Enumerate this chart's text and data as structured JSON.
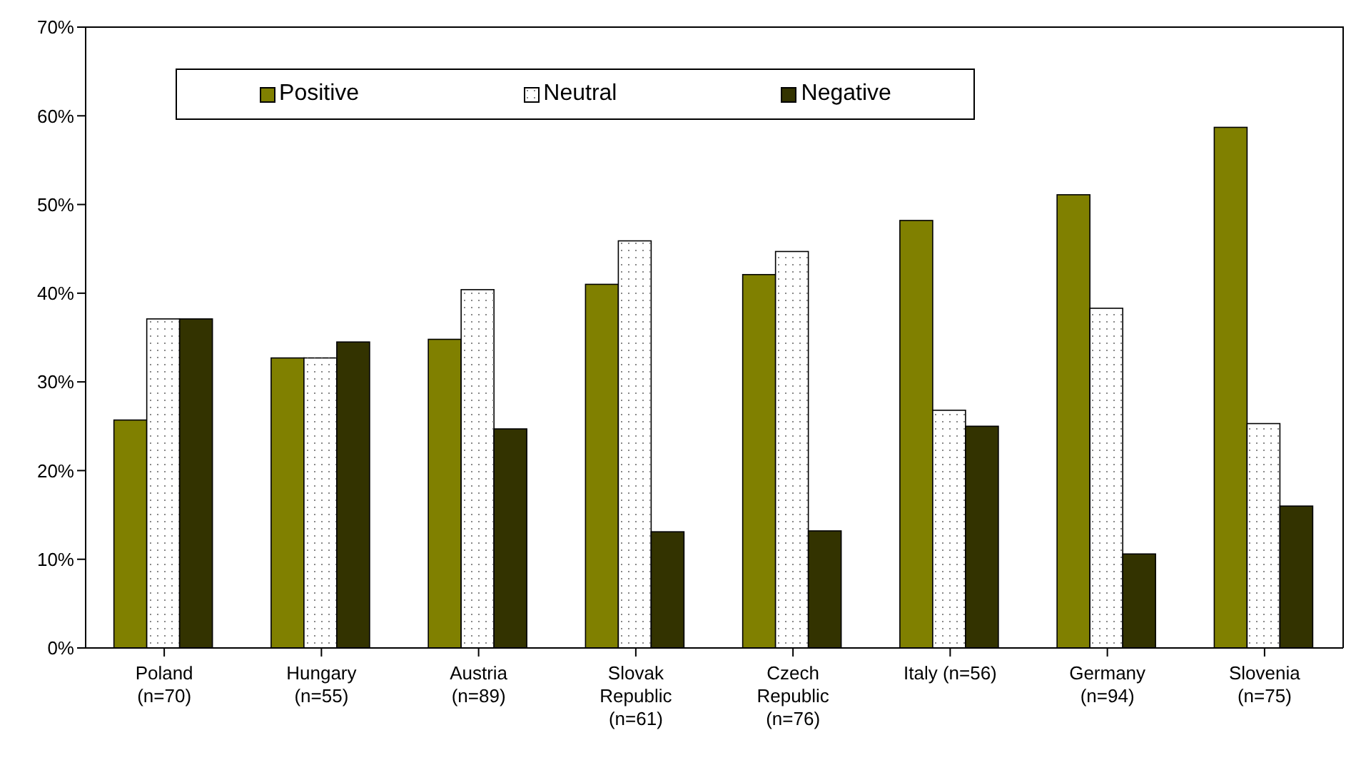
{
  "chart_data": {
    "type": "bar",
    "categories": [
      "Poland\n(n=70)",
      "Hungary\n(n=55)",
      "Austria\n(n=89)",
      "Slovak\nRepublic\n(n=61)",
      "Czech\nRepublic\n(n=76)",
      "Italy (n=56)",
      "Germany\n(n=94)",
      "Slovenia\n(n=75)"
    ],
    "series": [
      {
        "name": "Positive",
        "color": "#808000",
        "values": [
          25.7,
          32.7,
          34.8,
          41.0,
          42.1,
          48.2,
          51.1,
          58.7
        ]
      },
      {
        "name": "Neutral",
        "color": "#ffffff",
        "values": [
          37.1,
          32.7,
          40.4,
          45.9,
          44.7,
          26.8,
          38.3,
          25.3
        ]
      },
      {
        "name": "Negative",
        "color": "#333300",
        "values": [
          37.1,
          34.5,
          24.7,
          13.1,
          13.2,
          25.0,
          10.6,
          16.0
        ]
      }
    ],
    "ylim": [
      0,
      70
    ],
    "yticks": [
      {
        "value": 0,
        "label": "0%"
      },
      {
        "value": 10,
        "label": "10%"
      },
      {
        "value": 20,
        "label": "20%"
      },
      {
        "value": 30,
        "label": "30%"
      },
      {
        "value": 40,
        "label": "40%"
      },
      {
        "value": 50,
        "label": "50%"
      },
      {
        "value": 60,
        "label": "60%"
      },
      {
        "value": 70,
        "label": "70%"
      }
    ],
    "legend": "top left"
  }
}
